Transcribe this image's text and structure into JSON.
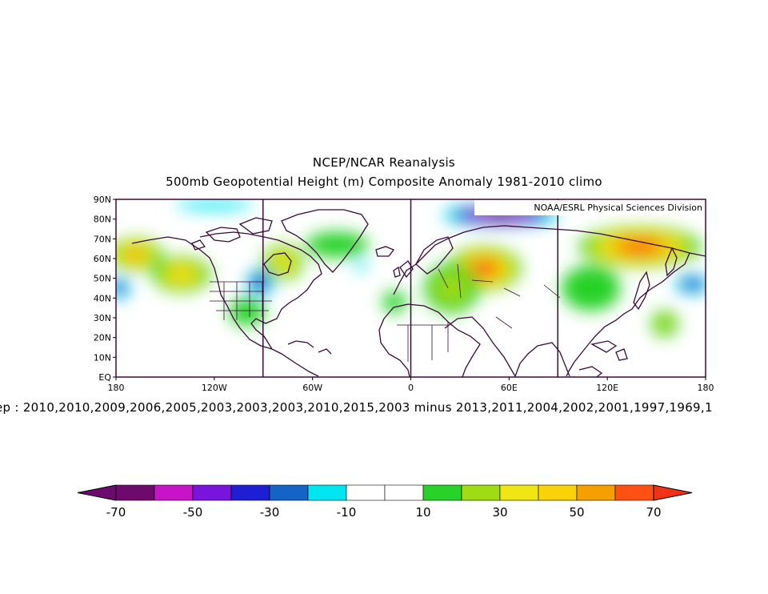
{
  "title": "NCEP/NCAR Reanalysis",
  "subtitle": "500mb Geopotential Height (m) Composite Anomaly 1981-2010 climo",
  "credit": "NOAA/ESRL Physical Sciences Division",
  "caption": "ep : 2010,2010,2009,2006,2005,2003,2003,2003,2010,2015,2003 minus 2013,2011,2004,2002,2001,1997,1969,1",
  "map": {
    "lon_range": [
      -180,
      180
    ],
    "lat_range": [
      0,
      90
    ],
    "lat_ticks": [
      "90N",
      "80N",
      "70N",
      "60N",
      "50N",
      "40N",
      "30N",
      "20N",
      "10N",
      "EQ"
    ],
    "lon_ticks": [
      "180",
      "120W",
      "60W",
      "0",
      "60E",
      "120E",
      "180"
    ],
    "meridian_lines_deg": [
      -90,
      0,
      90
    ]
  },
  "colorbar": {
    "labels": [
      "-70",
      "-50",
      "-30",
      "-10",
      "10",
      "30",
      "50",
      "70"
    ],
    "colors": [
      "#6e0a6e",
      "#c814c8",
      "#7814dc",
      "#1e1ed2",
      "#1464c8",
      "#00e6f0",
      "#ffffff",
      "#ffffff",
      "#28d228",
      "#a0dc14",
      "#f0e614",
      "#fad20a",
      "#f5a000",
      "#ff5014"
    ],
    "low_end_color": "#6e0a6e",
    "high_end_color": "#f03218"
  },
  "anomaly_centers": [
    {
      "lon": 45,
      "lat": 55,
      "value": 72,
      "rx": 24,
      "ry": 12
    },
    {
      "lon": 140,
      "lat": 66,
      "value": 72,
      "rx": 40,
      "ry": 11
    },
    {
      "lon": -168,
      "lat": 62,
      "value": 55,
      "rx": 18,
      "ry": 9
    },
    {
      "lon": -140,
      "lat": 52,
      "value": 45,
      "rx": 20,
      "ry": 10
    },
    {
      "lon": -78,
      "lat": 58,
      "value": 42,
      "rx": 14,
      "ry": 10
    },
    {
      "lon": 25,
      "lat": 45,
      "value": 25,
      "rx": 20,
      "ry": 15
    },
    {
      "lon": 110,
      "lat": 45,
      "value": 22,
      "rx": 22,
      "ry": 14
    },
    {
      "lon": -100,
      "lat": 33,
      "value": 18,
      "rx": 14,
      "ry": 9
    },
    {
      "lon": -10,
      "lat": 38,
      "value": 20,
      "rx": 9,
      "ry": 7
    },
    {
      "lon": 155,
      "lat": 27,
      "value": 25,
      "rx": 10,
      "ry": 8
    },
    {
      "lon": -45,
      "lat": 67,
      "value": 20,
      "rx": 24,
      "ry": 8
    },
    {
      "lon": -92,
      "lat": 48,
      "value": -42,
      "rx": 9,
      "ry": 7
    },
    {
      "lon": 55,
      "lat": 82,
      "value": -72,
      "rx": 38,
      "ry": 6
    },
    {
      "lon": -178,
      "lat": 45,
      "value": -40,
      "rx": 7,
      "ry": 6
    },
    {
      "lon": 172,
      "lat": 47,
      "value": -40,
      "rx": 12,
      "ry": 5
    },
    {
      "lon": -120,
      "lat": 87,
      "value": -18,
      "rx": 30,
      "ry": 3
    },
    {
      "lon": -30,
      "lat": 56,
      "value": -15,
      "rx": 5,
      "ry": 3
    }
  ]
}
